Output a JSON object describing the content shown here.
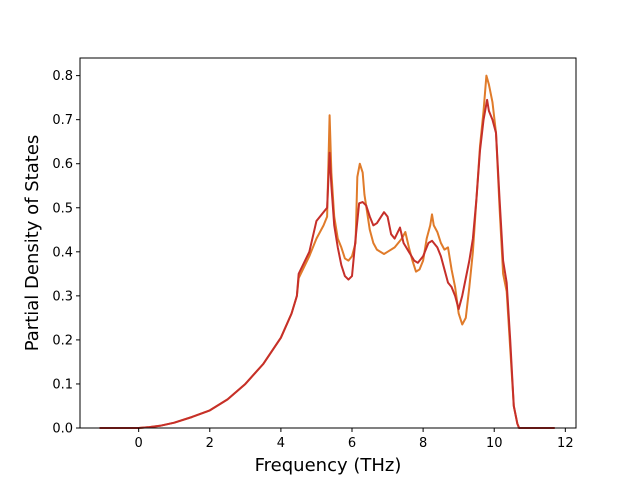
{
  "chart_data": {
    "type": "line",
    "title": "",
    "xlabel": "Frequency (THz)",
    "ylabel": "Partial Density of States",
    "xlim": [
      -1.65,
      12.3
    ],
    "ylim": [
      0.0,
      0.84
    ],
    "xticks": [
      0,
      2,
      4,
      6,
      8,
      10,
      12
    ],
    "yticks": [
      0.0,
      0.1,
      0.2,
      0.3,
      0.4,
      0.5,
      0.6,
      0.7,
      0.8
    ],
    "xtick_labels": [
      "0",
      "2",
      "4",
      "6",
      "8",
      "10",
      "12"
    ],
    "ytick_labels": [
      "0.0",
      "0.1",
      "0.2",
      "0.3",
      "0.4",
      "0.5",
      "0.6",
      "0.7",
      "0.8"
    ],
    "grid": false,
    "legend": false,
    "series": [
      {
        "color": "#e07b2a",
        "points": [
          [
            -1.1,
            0.0
          ],
          [
            0,
            0.0
          ],
          [
            0.3,
            0.002
          ],
          [
            0.6,
            0.005
          ],
          [
            1.0,
            0.012
          ],
          [
            1.5,
            0.025
          ],
          [
            2.0,
            0.04
          ],
          [
            2.5,
            0.065
          ],
          [
            3.0,
            0.1
          ],
          [
            3.5,
            0.145
          ],
          [
            4.0,
            0.205
          ],
          [
            4.3,
            0.26
          ],
          [
            4.45,
            0.3
          ],
          [
            4.5,
            0.34
          ],
          [
            4.8,
            0.39
          ],
          [
            5.0,
            0.43
          ],
          [
            5.2,
            0.46
          ],
          [
            5.3,
            0.48
          ],
          [
            5.37,
            0.71
          ],
          [
            5.42,
            0.58
          ],
          [
            5.5,
            0.48
          ],
          [
            5.6,
            0.43
          ],
          [
            5.7,
            0.41
          ],
          [
            5.8,
            0.385
          ],
          [
            5.9,
            0.38
          ],
          [
            6.0,
            0.39
          ],
          [
            6.1,
            0.42
          ],
          [
            6.15,
            0.57
          ],
          [
            6.22,
            0.6
          ],
          [
            6.3,
            0.58
          ],
          [
            6.35,
            0.53
          ],
          [
            6.5,
            0.45
          ],
          [
            6.6,
            0.42
          ],
          [
            6.7,
            0.405
          ],
          [
            6.9,
            0.395
          ],
          [
            7.0,
            0.4
          ],
          [
            7.2,
            0.41
          ],
          [
            7.4,
            0.43
          ],
          [
            7.5,
            0.445
          ],
          [
            7.6,
            0.41
          ],
          [
            7.7,
            0.38
          ],
          [
            7.8,
            0.355
          ],
          [
            7.9,
            0.36
          ],
          [
            8.0,
            0.38
          ],
          [
            8.1,
            0.43
          ],
          [
            8.2,
            0.46
          ],
          [
            8.25,
            0.485
          ],
          [
            8.3,
            0.46
          ],
          [
            8.4,
            0.445
          ],
          [
            8.5,
            0.42
          ],
          [
            8.6,
            0.405
          ],
          [
            8.7,
            0.41
          ],
          [
            8.8,
            0.36
          ],
          [
            8.9,
            0.32
          ],
          [
            9.0,
            0.26
          ],
          [
            9.1,
            0.235
          ],
          [
            9.2,
            0.25
          ],
          [
            9.3,
            0.32
          ],
          [
            9.4,
            0.4
          ],
          [
            9.5,
            0.52
          ],
          [
            9.6,
            0.64
          ],
          [
            9.7,
            0.72
          ],
          [
            9.78,
            0.8
          ],
          [
            9.85,
            0.78
          ],
          [
            9.95,
            0.74
          ],
          [
            10.05,
            0.67
          ],
          [
            10.15,
            0.5
          ],
          [
            10.25,
            0.35
          ],
          [
            10.35,
            0.31
          ],
          [
            10.45,
            0.18
          ],
          [
            10.55,
            0.05
          ],
          [
            10.65,
            0.01
          ],
          [
            10.7,
            0.0
          ],
          [
            11.7,
            0.0
          ]
        ]
      },
      {
        "color": "#c62f2a",
        "points": [
          [
            -1.1,
            0.0
          ],
          [
            0,
            0.0
          ],
          [
            0.3,
            0.002
          ],
          [
            0.6,
            0.005
          ],
          [
            1.0,
            0.012
          ],
          [
            1.5,
            0.025
          ],
          [
            2.0,
            0.04
          ],
          [
            2.5,
            0.065
          ],
          [
            3.0,
            0.1
          ],
          [
            3.5,
            0.145
          ],
          [
            4.0,
            0.205
          ],
          [
            4.3,
            0.26
          ],
          [
            4.45,
            0.3
          ],
          [
            4.5,
            0.35
          ],
          [
            4.8,
            0.4
          ],
          [
            5.0,
            0.47
          ],
          [
            5.2,
            0.49
          ],
          [
            5.3,
            0.5
          ],
          [
            5.37,
            0.625
          ],
          [
            5.42,
            0.55
          ],
          [
            5.5,
            0.46
          ],
          [
            5.6,
            0.41
          ],
          [
            5.7,
            0.37
          ],
          [
            5.8,
            0.345
          ],
          [
            5.9,
            0.337
          ],
          [
            6.0,
            0.345
          ],
          [
            6.1,
            0.43
          ],
          [
            6.2,
            0.51
          ],
          [
            6.3,
            0.513
          ],
          [
            6.4,
            0.505
          ],
          [
            6.5,
            0.48
          ],
          [
            6.6,
            0.46
          ],
          [
            6.7,
            0.465
          ],
          [
            6.9,
            0.49
          ],
          [
            7.0,
            0.48
          ],
          [
            7.1,
            0.44
          ],
          [
            7.2,
            0.43
          ],
          [
            7.35,
            0.455
          ],
          [
            7.45,
            0.42
          ],
          [
            7.6,
            0.4
          ],
          [
            7.75,
            0.38
          ],
          [
            7.85,
            0.375
          ],
          [
            8.0,
            0.39
          ],
          [
            8.15,
            0.42
          ],
          [
            8.25,
            0.425
          ],
          [
            8.4,
            0.41
          ],
          [
            8.5,
            0.39
          ],
          [
            8.6,
            0.36
          ],
          [
            8.7,
            0.33
          ],
          [
            8.8,
            0.32
          ],
          [
            8.9,
            0.3
          ],
          [
            9.0,
            0.27
          ],
          [
            9.1,
            0.3
          ],
          [
            9.2,
            0.34
          ],
          [
            9.3,
            0.38
          ],
          [
            9.4,
            0.43
          ],
          [
            9.5,
            0.52
          ],
          [
            9.6,
            0.63
          ],
          [
            9.7,
            0.7
          ],
          [
            9.8,
            0.745
          ],
          [
            9.85,
            0.72
          ],
          [
            9.95,
            0.7
          ],
          [
            10.05,
            0.67
          ],
          [
            10.15,
            0.52
          ],
          [
            10.25,
            0.38
          ],
          [
            10.35,
            0.33
          ],
          [
            10.45,
            0.2
          ],
          [
            10.55,
            0.05
          ],
          [
            10.65,
            0.01
          ],
          [
            10.7,
            0.0
          ],
          [
            11.7,
            0.0
          ]
        ]
      }
    ]
  }
}
